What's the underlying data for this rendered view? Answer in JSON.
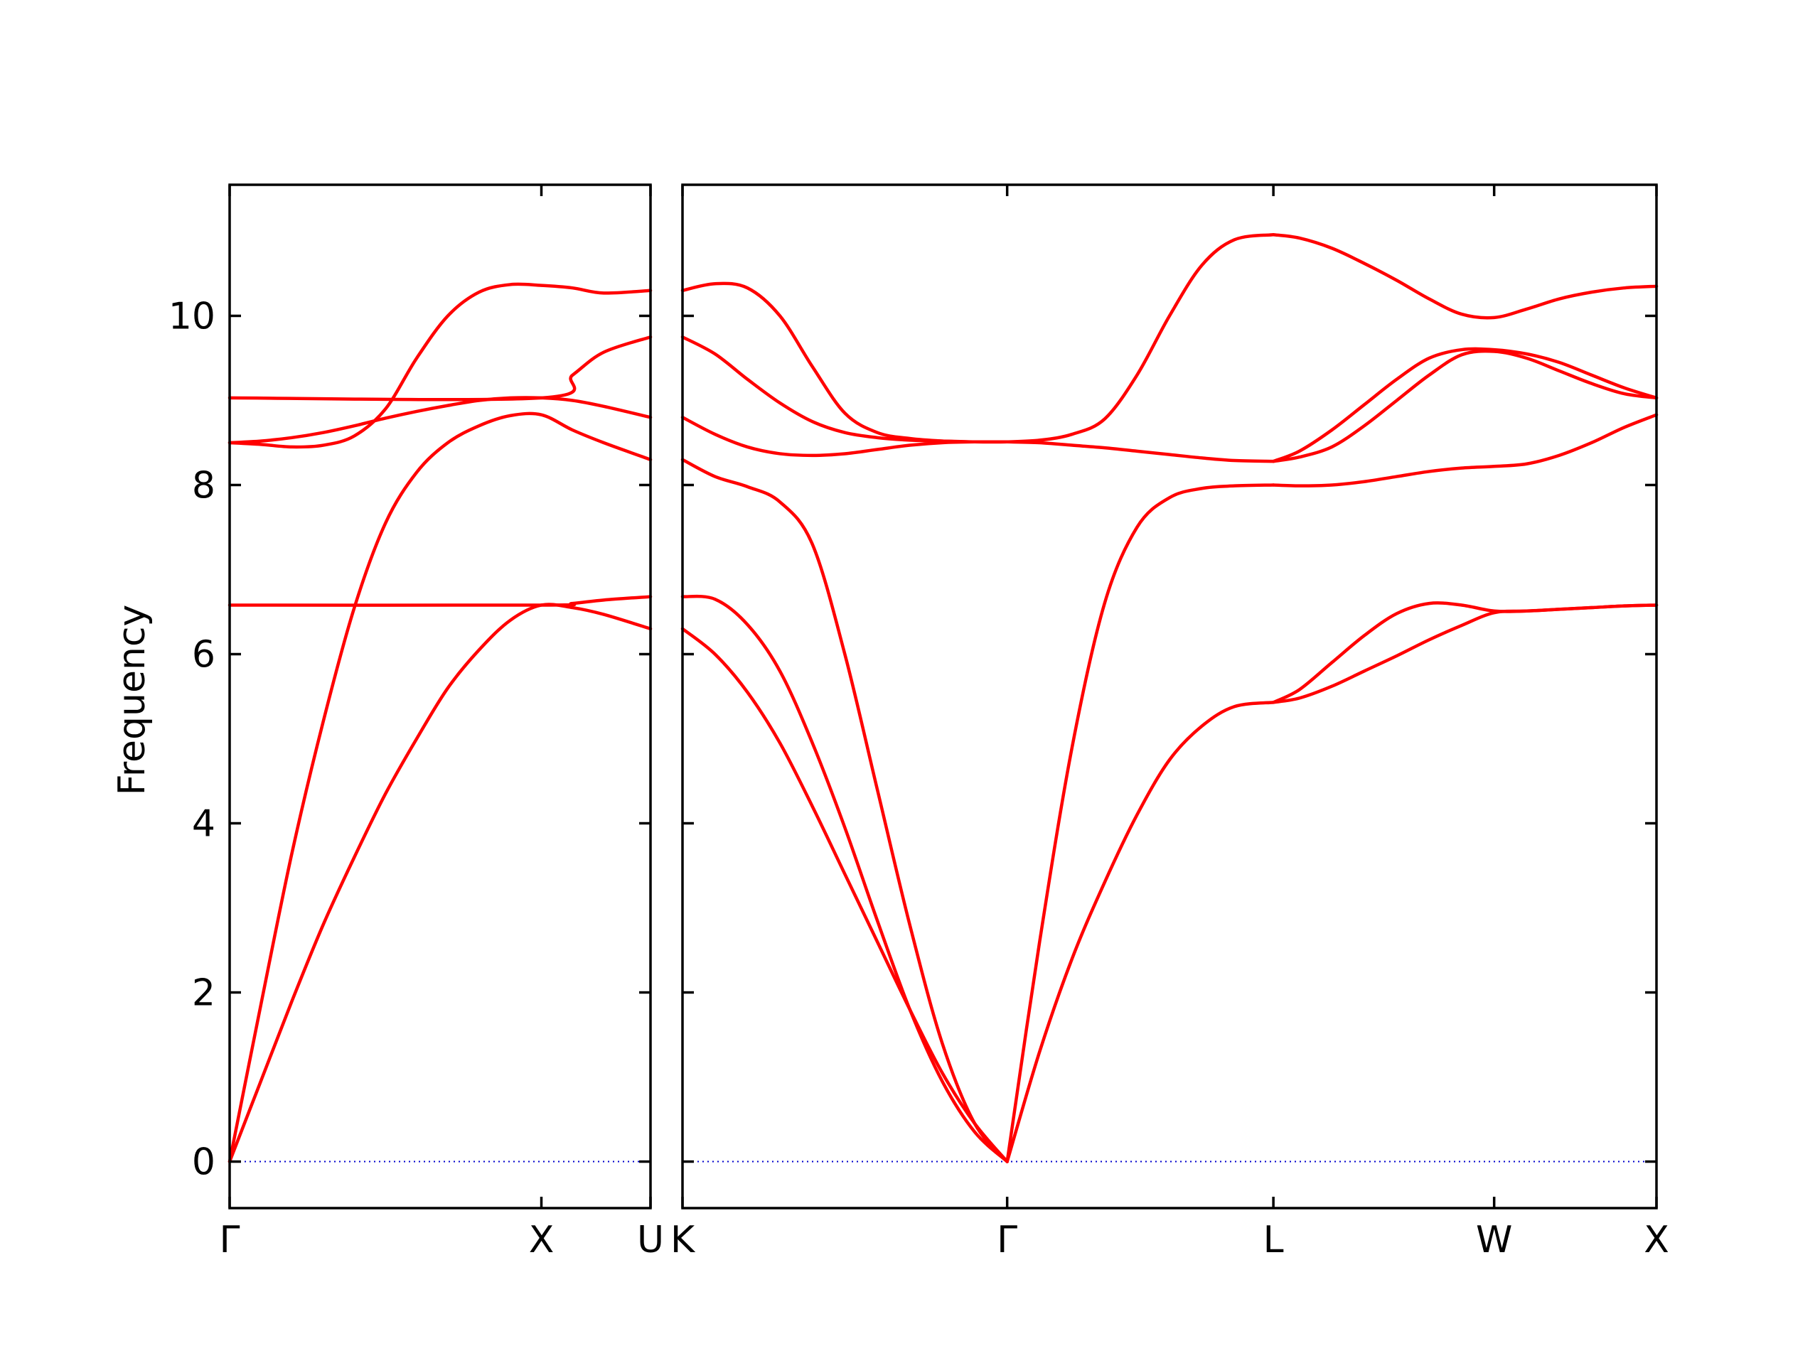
{
  "chart_data": {
    "type": "line",
    "ylabel": "Frequency",
    "ylim": [
      -0.55,
      11.55
    ],
    "yticks": [
      0,
      2,
      4,
      6,
      8,
      10
    ],
    "grid": false,
    "colors": {
      "bands": "#ff0000",
      "zero_line": "#0000cc",
      "frame": "#000000"
    },
    "panels": [
      {
        "name": "left-panel",
        "xlim": [
          0,
          1.35
        ],
        "xticks": [
          {
            "x": 0,
            "label": "Γ"
          },
          {
            "x": 1.0,
            "label": "X"
          },
          {
            "x": 1.35,
            "label": "U"
          }
        ],
        "series": [
          {
            "x": [
              0,
              0.1,
              0.2,
              0.3,
              0.4,
              0.5,
              0.6,
              0.7,
              0.8,
              0.9,
              1.0,
              1.1,
              1.2,
              1.35
            ],
            "y": [
              0,
              0.95,
              1.9,
              2.8,
              3.6,
              4.35,
              5.0,
              5.6,
              6.05,
              6.4,
              6.58,
              6.55,
              6.47,
              6.3
            ]
          },
          {
            "x": [
              0,
              0.1,
              0.2,
              0.3,
              0.4,
              0.5,
              0.6,
              0.7,
              0.8,
              0.9,
              1.0,
              1.1,
              1.2,
              1.35
            ],
            "y": [
              0,
              1.85,
              3.65,
              5.2,
              6.55,
              7.55,
              8.15,
              8.5,
              8.7,
              8.82,
              8.83,
              8.65,
              8.5,
              8.3
            ]
          },
          {
            "x": [
              0,
              0.1,
              0.2,
              0.3,
              0.4,
              0.5,
              0.6,
              0.7,
              0.8,
              0.9,
              1.0,
              1.1,
              1.2,
              1.35
            ],
            "y": [
              8.5,
              8.48,
              8.45,
              8.47,
              8.58,
              8.9,
              9.5,
              10.0,
              10.28,
              10.37,
              10.36,
              10.33,
              10.27,
              10.3
            ]
          },
          {
            "x": [
              0,
              0.1,
              0.2,
              0.3,
              0.4,
              0.5,
              0.6,
              0.7,
              0.8,
              0.9,
              1.0,
              1.1,
              1.2,
              1.35
            ],
            "y": [
              8.5,
              8.52,
              8.56,
              8.62,
              8.7,
              8.79,
              8.87,
              8.94,
              9.0,
              9.03,
              9.03,
              9.0,
              8.93,
              8.8
            ]
          },
          {
            "x": [
              0,
              1.0,
              1.1,
              1.2,
              1.35
            ],
            "y": [
              6.58,
              6.58,
              6.6,
              6.64,
              6.68
            ]
          },
          {
            "x": [
              0,
              1.0,
              1.1,
              1.2,
              1.35
            ],
            "y": [
              9.03,
              9.03,
              9.3,
              9.57,
              9.75
            ]
          }
        ]
      },
      {
        "name": "right-panel",
        "xlim": [
          0,
          3.0
        ],
        "xticks": [
          {
            "x": 0,
            "label": "K"
          },
          {
            "x": 1.0,
            "label": "Γ"
          },
          {
            "x": 1.82,
            "label": "L"
          },
          {
            "x": 2.5,
            "label": "W"
          },
          {
            "x": 3.0,
            "label": "X"
          }
        ],
        "series": [
          {
            "x": [
              0,
              0.1,
              0.2,
              0.3,
              0.4,
              0.5,
              0.6,
              0.7,
              0.8,
              0.9,
              1.0
            ],
            "y": [
              6.3,
              6.0,
              5.55,
              4.95,
              4.2,
              3.4,
              2.6,
              1.8,
              1.05,
              0.45,
              0
            ]
          },
          {
            "x": [
              0,
              0.1,
              0.2,
              0.3,
              0.4,
              0.5,
              0.6,
              0.7,
              0.8,
              0.9,
              1.0
            ],
            "y": [
              6.68,
              6.65,
              6.35,
              5.8,
              4.95,
              3.95,
              2.85,
              1.8,
              0.95,
              0.35,
              0
            ]
          },
          {
            "x": [
              0,
              0.1,
              0.2,
              0.3,
              0.4,
              0.5,
              0.6,
              0.7,
              0.8,
              0.9,
              1.0
            ],
            "y": [
              8.3,
              8.1,
              7.98,
              7.8,
              7.3,
              6.0,
              4.4,
              2.8,
              1.4,
              0.45,
              0
            ]
          },
          {
            "x": [
              0,
              0.1,
              0.2,
              0.3,
              0.4,
              0.5,
              0.6,
              0.7,
              0.8,
              0.9,
              1.0
            ],
            "y": [
              8.8,
              8.6,
              8.45,
              8.37,
              8.35,
              8.37,
              8.42,
              8.47,
              8.5,
              8.51,
              8.51
            ]
          },
          {
            "x": [
              0,
              0.1,
              0.2,
              0.3,
              0.4,
              0.5,
              0.6,
              0.7,
              0.8,
              0.9,
              1.0
            ],
            "y": [
              9.75,
              9.55,
              9.25,
              8.97,
              8.75,
              8.62,
              8.56,
              8.53,
              8.52,
              8.51,
              8.51
            ]
          },
          {
            "x": [
              0,
              0.1,
              0.2,
              0.3,
              0.4,
              0.5,
              0.6,
              0.7,
              0.8,
              0.9,
              1.0
            ],
            "y": [
              10.3,
              10.38,
              10.33,
              10.0,
              9.4,
              8.85,
              8.62,
              8.55,
              8.52,
              8.51,
              8.51
            ]
          },
          {
            "x": [
              1.0,
              1.1,
              1.2,
              1.3,
              1.4,
              1.5,
              1.6,
              1.7,
              1.82
            ],
            "y": [
              0,
              1.3,
              2.4,
              3.3,
              4.1,
              4.75,
              5.15,
              5.38,
              5.43
            ]
          },
          {
            "x": [
              1.0,
              1.1,
              1.2,
              1.3,
              1.4,
              1.5,
              1.6,
              1.7,
              1.82
            ],
            "y": [
              0,
              2.6,
              4.9,
              6.6,
              7.5,
              7.85,
              7.96,
              7.99,
              8.0
            ]
          },
          {
            "x": [
              1.0,
              1.1,
              1.2,
              1.3,
              1.4,
              1.5,
              1.6,
              1.7,
              1.82
            ],
            "y": [
              8.51,
              8.5,
              8.47,
              8.44,
              8.4,
              8.36,
              8.32,
              8.29,
              8.28
            ]
          },
          {
            "x": [
              1.0,
              1.1,
              1.2,
              1.3,
              1.4,
              1.5,
              1.6,
              1.7,
              1.82
            ],
            "y": [
              8.51,
              8.53,
              8.6,
              8.78,
              9.3,
              10.0,
              10.6,
              10.9,
              10.96
            ]
          },
          {
            "x": [
              1.82,
              1.9,
              2.0,
              2.1,
              2.2,
              2.3,
              2.4,
              2.5,
              2.6,
              2.7,
              2.8,
              2.9,
              3.0
            ],
            "y": [
              5.43,
              5.48,
              5.62,
              5.8,
              5.98,
              6.17,
              6.34,
              6.49,
              6.51,
              6.53,
              6.55,
              6.57,
              6.58
            ]
          },
          {
            "x": [
              1.82,
              1.9,
              2.0,
              2.1,
              2.2,
              2.3,
              2.4,
              2.5,
              2.6,
              2.7,
              2.8,
              2.9,
              3.0
            ],
            "y": [
              5.43,
              5.58,
              5.9,
              6.22,
              6.48,
              6.6,
              6.58,
              6.51,
              6.51,
              6.53,
              6.55,
              6.57,
              6.58
            ]
          },
          {
            "x": [
              1.82,
              1.9,
              2.0,
              2.1,
              2.2,
              2.3,
              2.4,
              2.5,
              2.6,
              2.7,
              2.8,
              2.9,
              3.0
            ],
            "y": [
              8.0,
              7.99,
              8.0,
              8.04,
              8.1,
              8.16,
              8.2,
              8.22,
              8.25,
              8.35,
              8.5,
              8.68,
              8.83
            ]
          },
          {
            "x": [
              1.82,
              1.9,
              2.0,
              2.1,
              2.2,
              2.3,
              2.4,
              2.5,
              2.6,
              2.7,
              2.8,
              2.9,
              3.0
            ],
            "y": [
              8.28,
              8.33,
              8.45,
              8.7,
              9.0,
              9.3,
              9.54,
              9.58,
              9.5,
              9.35,
              9.2,
              9.08,
              9.03
            ]
          },
          {
            "x": [
              1.82,
              1.9,
              2.0,
              2.1,
              2.2,
              2.3,
              2.4,
              2.5,
              2.6,
              2.7,
              2.8,
              2.9,
              3.0
            ],
            "y": [
              8.28,
              8.4,
              8.65,
              8.95,
              9.25,
              9.5,
              9.6,
              9.6,
              9.55,
              9.45,
              9.3,
              9.15,
              9.03
            ]
          },
          {
            "x": [
              1.82,
              1.9,
              2.0,
              2.1,
              2.2,
              2.3,
              2.4,
              2.5,
              2.6,
              2.7,
              2.8,
              2.9,
              3.0
            ],
            "y": [
              10.96,
              10.92,
              10.8,
              10.62,
              10.42,
              10.2,
              10.02,
              9.98,
              10.08,
              10.2,
              10.28,
              10.33,
              10.35
            ]
          }
        ]
      }
    ]
  }
}
